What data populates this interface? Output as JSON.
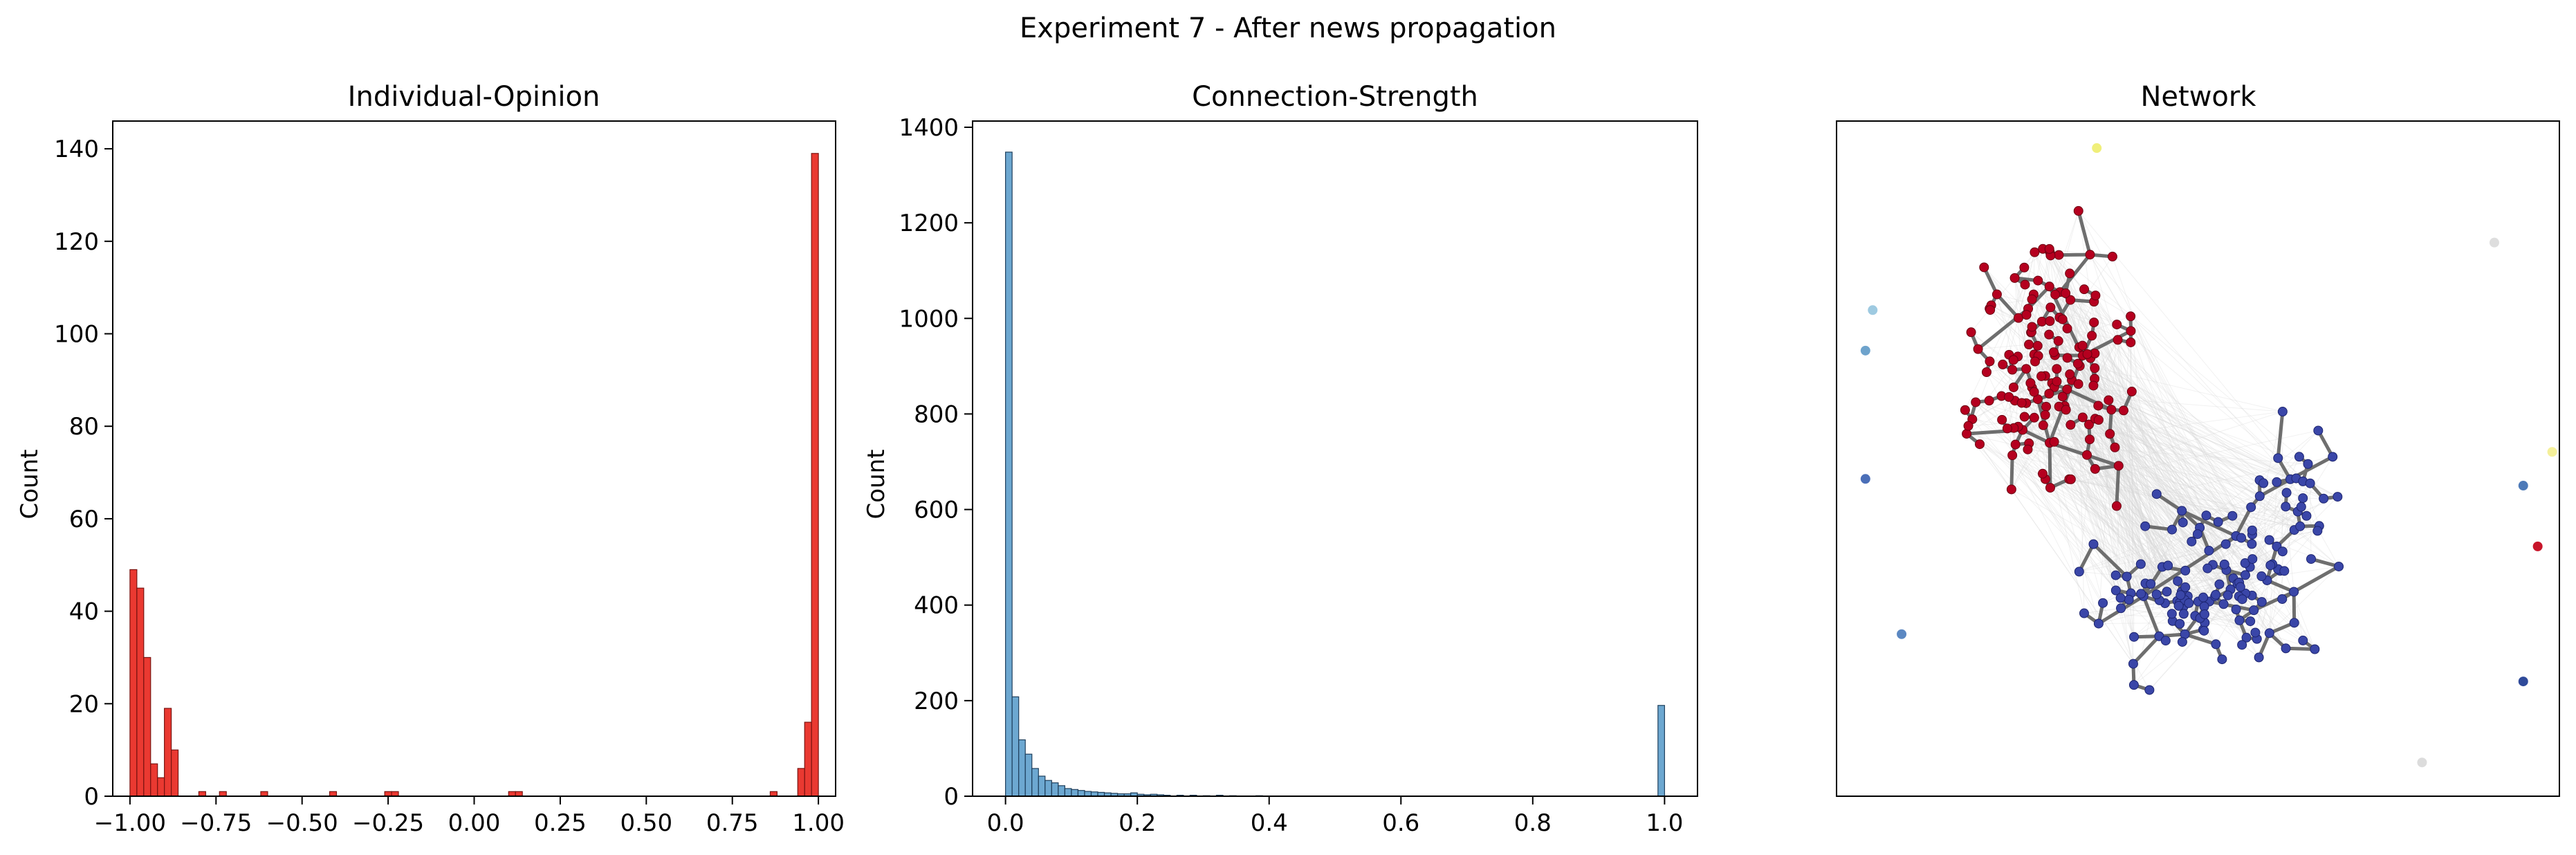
{
  "figure": {
    "suptitle": "Experiment 7 - After news propagation"
  },
  "chart_data": [
    {
      "type": "bar",
      "title": "Individual-Opinion",
      "xlabel": "",
      "ylabel": "Count",
      "xlim": [
        -1.05,
        1.05
      ],
      "ylim": [
        0,
        146
      ],
      "xticks": [
        -1.0,
        -0.75,
        -0.5,
        -0.25,
        0.0,
        0.25,
        0.5,
        0.75,
        1.0
      ],
      "xtick_labels": [
        "−1.00",
        "−0.75",
        "−0.50",
        "−0.25",
        "0.00",
        "0.25",
        "0.50",
        "0.75",
        "1.00"
      ],
      "yticks": [
        0,
        20,
        40,
        60,
        80,
        100,
        120,
        140
      ],
      "ytick_labels": [
        "0",
        "20",
        "40",
        "60",
        "80",
        "100",
        "120",
        "140"
      ],
      "bin_width": 0.02,
      "bins": [
        [
          -1.0,
          49
        ],
        [
          -0.98,
          45
        ],
        [
          -0.96,
          30
        ],
        [
          -0.94,
          7
        ],
        [
          -0.92,
          4
        ],
        [
          -0.9,
          19
        ],
        [
          -0.88,
          10
        ],
        [
          -0.8,
          1
        ],
        [
          -0.74,
          1
        ],
        [
          -0.62,
          1
        ],
        [
          -0.42,
          1
        ],
        [
          -0.26,
          1
        ],
        [
          -0.24,
          1
        ],
        [
          0.1,
          1
        ],
        [
          0.12,
          1
        ],
        [
          0.86,
          1
        ],
        [
          0.94,
          6
        ],
        [
          0.96,
          16
        ],
        [
          0.98,
          139
        ]
      ],
      "color": "#e8231b",
      "edge_color": "#7a1512"
    },
    {
      "type": "bar",
      "title": "Connection-Strength",
      "xlabel": "",
      "ylabel": "Count",
      "xlim": [
        -0.05,
        1.05
      ],
      "ylim": [
        0,
        1413
      ],
      "xticks": [
        0.0,
        0.2,
        0.4,
        0.6,
        0.8,
        1.0
      ],
      "xtick_labels": [
        "0.0",
        "0.2",
        "0.4",
        "0.6",
        "0.8",
        "1.0"
      ],
      "yticks": [
        0,
        200,
        400,
        600,
        800,
        1000,
        1200,
        1400
      ],
      "ytick_labels": [
        "0",
        "200",
        "400",
        "600",
        "800",
        "1000",
        "1200",
        "1400"
      ],
      "bin_width": 0.01,
      "bins": [
        [
          0.0,
          1348
        ],
        [
          0.01,
          208
        ],
        [
          0.02,
          118
        ],
        [
          0.03,
          88
        ],
        [
          0.04,
          58
        ],
        [
          0.05,
          42
        ],
        [
          0.06,
          33
        ],
        [
          0.07,
          28
        ],
        [
          0.08,
          22
        ],
        [
          0.09,
          16
        ],
        [
          0.1,
          14
        ],
        [
          0.11,
          12
        ],
        [
          0.12,
          10
        ],
        [
          0.13,
          9
        ],
        [
          0.14,
          8
        ],
        [
          0.15,
          7
        ],
        [
          0.16,
          6
        ],
        [
          0.17,
          5
        ],
        [
          0.18,
          5
        ],
        [
          0.19,
          7
        ],
        [
          0.2,
          4
        ],
        [
          0.21,
          3
        ],
        [
          0.22,
          4
        ],
        [
          0.23,
          3
        ],
        [
          0.24,
          2
        ],
        [
          0.26,
          2
        ],
        [
          0.28,
          2
        ],
        [
          0.3,
          1
        ],
        [
          0.32,
          2
        ],
        [
          0.34,
          1
        ],
        [
          0.38,
          1
        ],
        [
          0.99,
          190
        ]
      ],
      "color": "#5d9fcc",
      "edge_color": "#1f3f5c"
    },
    {
      "type": "network",
      "title": "Network",
      "node_colors": {
        "negative": "#b5001f",
        "positive": "#3a46a8",
        "edge": "#6e6e6e",
        "faint_edge": "#d8d8d8"
      },
      "isolated_nodes": [
        {
          "x": 0.36,
          "y": 0.96,
          "color": "#f0ef7a"
        },
        {
          "x": 0.91,
          "y": 0.82,
          "color": "#dedede"
        },
        {
          "x": 0.05,
          "y": 0.72,
          "color": "#9ecae1"
        },
        {
          "x": 0.04,
          "y": 0.66,
          "color": "#6ea3cc"
        },
        {
          "x": 0.04,
          "y": 0.47,
          "color": "#4b6fb8"
        },
        {
          "x": 0.09,
          "y": 0.24,
          "color": "#5b88c2"
        },
        {
          "x": 0.99,
          "y": 0.51,
          "color": "#f5f09a"
        },
        {
          "x": 0.95,
          "y": 0.46,
          "color": "#4d7ab8"
        },
        {
          "x": 0.97,
          "y": 0.37,
          "color": "#c8152a"
        },
        {
          "x": 0.95,
          "y": 0.17,
          "color": "#2f4a9a"
        },
        {
          "x": 0.81,
          "y": 0.05,
          "color": "#dcdcdc"
        }
      ]
    }
  ]
}
